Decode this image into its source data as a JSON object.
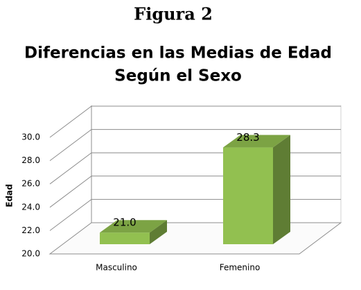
{
  "chart_data": {
    "type": "bar3d",
    "caption": "Figura 2",
    "title": [
      "Diferencias en las Medias de Edad",
      "Según el Sexo"
    ],
    "y_label": "Edad",
    "categories": [
      "Masculino",
      "Femenino"
    ],
    "values": [
      21.0,
      28.3
    ],
    "value_labels": [
      "21.0",
      "28.3"
    ],
    "color": "#92c050",
    "ylim": [
      20,
      30
    ],
    "yticks": [
      {
        "value": 20,
        "label": "20.0"
      },
      {
        "value": 22,
        "label": "22.0"
      },
      {
        "value": 24,
        "label": "24.0"
      },
      {
        "value": 26,
        "label": "26.0"
      },
      {
        "value": 28,
        "label": "28.0"
      },
      {
        "value": 30,
        "label": "30.0"
      }
    ],
    "grid": true
  }
}
